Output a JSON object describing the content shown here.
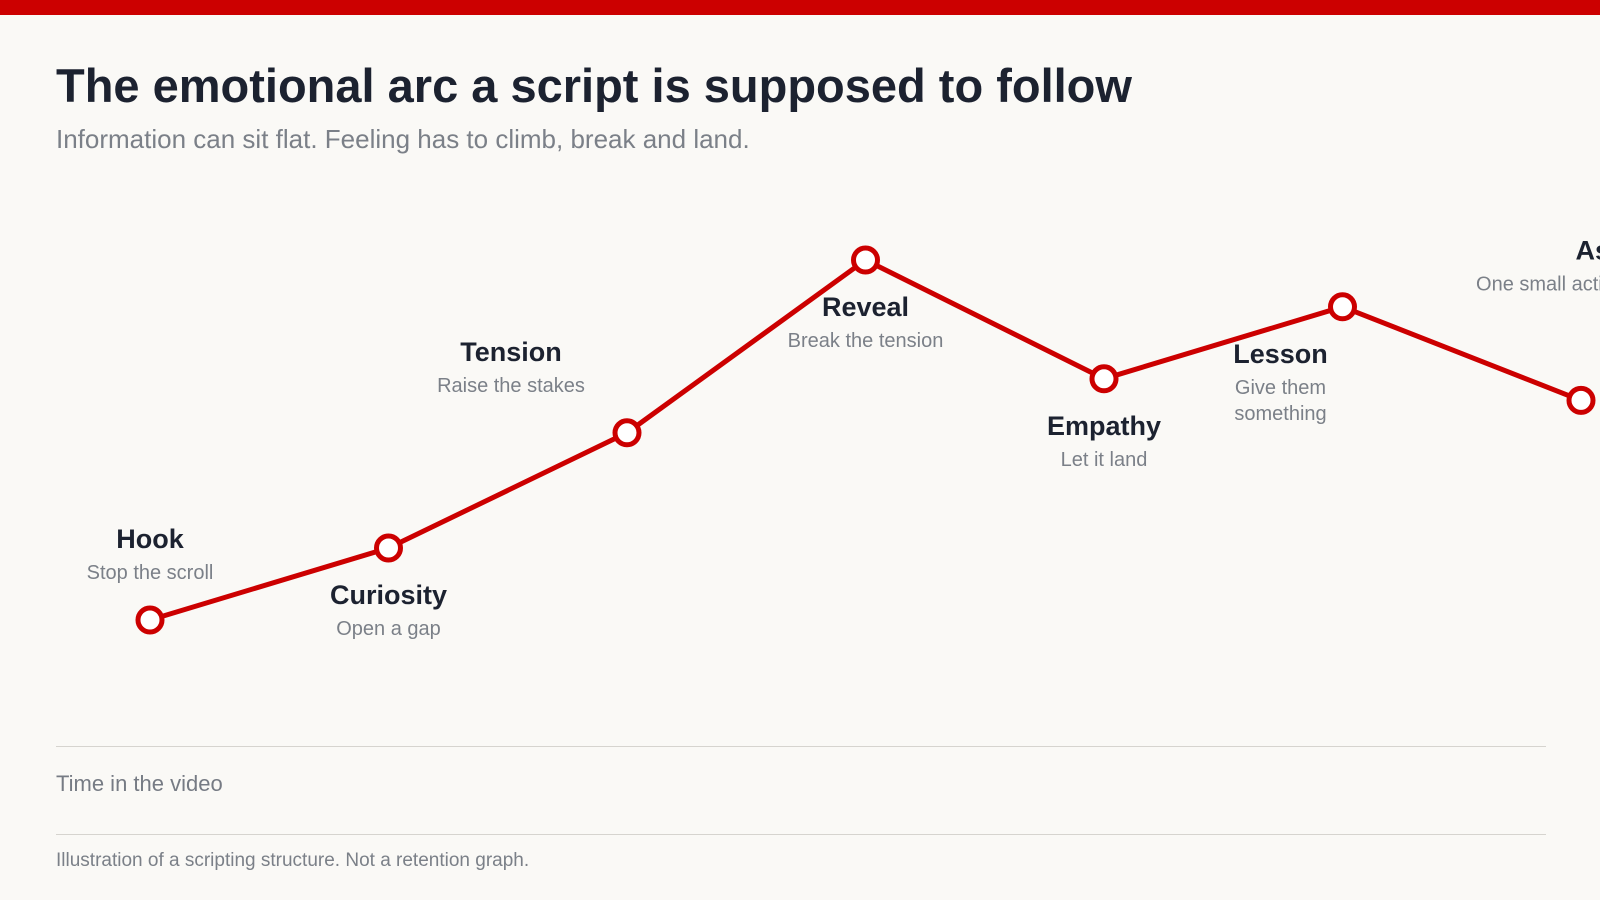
{
  "title": "The emotional arc a script is supposed to follow",
  "subtitle": "Information can sit flat. Feeling has to climb, break and land.",
  "x_axis_label": "Time in the video",
  "footnote": "Illustration of a scripting structure. Not a retention graph.",
  "colors": {
    "accent": "#cc0000",
    "title": "#1c2230",
    "muted": "#7b8088",
    "background": "#faf9f6"
  },
  "chart_data": {
    "type": "line",
    "xlabel": "Time in the video",
    "ylabel": "",
    "grid": false,
    "points": [
      {
        "label": "Hook",
        "desc": [
          "Stop the scroll"
        ],
        "x": 1,
        "y": 0.0,
        "label_pos": "above"
      },
      {
        "label": "Curiosity",
        "desc": [
          "Open a gap"
        ],
        "x": 2,
        "y": 0.2,
        "label_pos": "below"
      },
      {
        "label": "Tension",
        "desc": [
          "Raise the stakes"
        ],
        "x": 3,
        "y": 0.52,
        "label_pos": "above-left"
      },
      {
        "label": "Reveal",
        "desc": [
          "Break the tension"
        ],
        "x": 4,
        "y": 1.0,
        "label_pos": "below"
      },
      {
        "label": "Empathy",
        "desc": [
          "Let it land"
        ],
        "x": 5,
        "y": 0.67,
        "label_pos": "below"
      },
      {
        "label": "Lesson",
        "desc": [
          "Give them",
          "something"
        ],
        "x": 6,
        "y": 0.87,
        "label_pos": "below-left"
      },
      {
        "label": "Ask",
        "desc": [
          "One small action"
        ],
        "x": 7,
        "y": 0.61,
        "label_pos": "above-left"
      }
    ]
  }
}
